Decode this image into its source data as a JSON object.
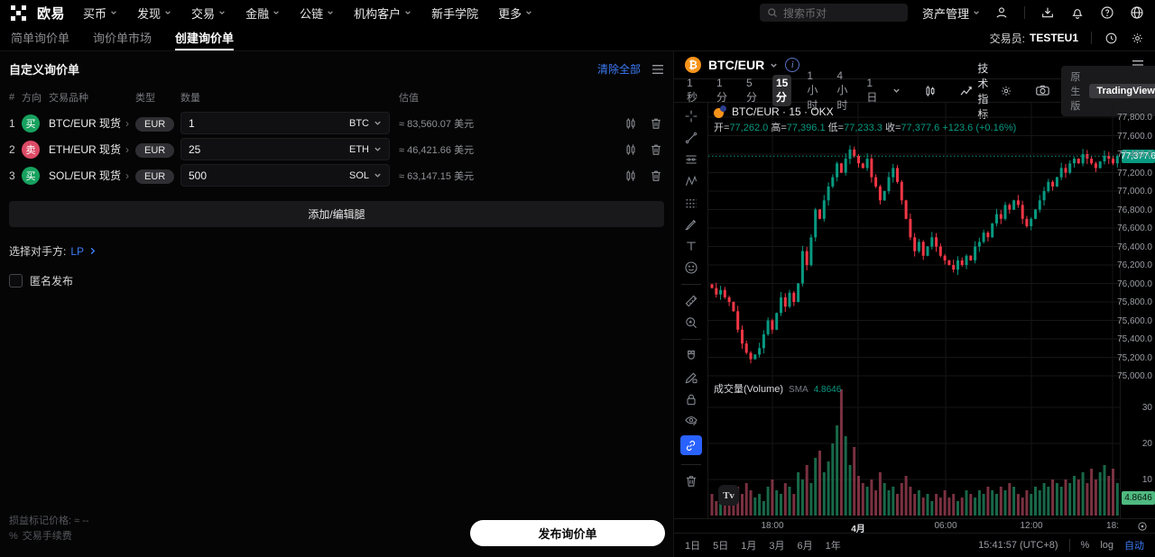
{
  "top_nav": {
    "logo_text": "欧易",
    "items": [
      {
        "label": "买币",
        "chevron": true
      },
      {
        "label": "发现",
        "chevron": true
      },
      {
        "label": "交易",
        "chevron": true
      },
      {
        "label": "金融",
        "chevron": true
      },
      {
        "label": "公链",
        "chevron": true
      },
      {
        "label": "机构客户",
        "chevron": true
      },
      {
        "label": "新手学院",
        "chevron": false
      },
      {
        "label": "更多",
        "chevron": true
      }
    ],
    "search_placeholder": "搜索币对",
    "assets_label": "资产管理"
  },
  "sub_nav": {
    "tabs": [
      {
        "label": "简单询价单"
      },
      {
        "label": "询价单市场"
      },
      {
        "label": "创建询价单"
      }
    ],
    "trader_label": "交易员:",
    "trader_value": "TESTEU1"
  },
  "rfq": {
    "title": "自定义询价单",
    "clear_all": "清除全部",
    "table": {
      "headers": {
        "index": "#",
        "side": "方向",
        "pair": "交易品种",
        "type": "类型",
        "amount": "数量",
        "value": "估值"
      },
      "rows": [
        {
          "index": "1",
          "side": "买",
          "pair": "BTC/EUR 现货",
          "type": "EUR",
          "amount": "1",
          "unit": "BTC",
          "value": "≈ 83,560.07 美元"
        },
        {
          "index": "2",
          "side": "卖",
          "pair": "ETH/EUR 现货",
          "type": "EUR",
          "amount": "25",
          "unit": "ETH",
          "value": "≈ 46,421.66 美元"
        },
        {
          "index": "3",
          "side": "买",
          "pair": "SOL/EUR 现货",
          "type": "EUR",
          "amount": "500",
          "unit": "SOL",
          "value": "≈ 63,147.15 美元"
        }
      ]
    },
    "add_leg": "添加/编辑腿",
    "counterparty_label": "选择对手方:",
    "counterparty_value": "LP",
    "anonymous_label": "匿名发布",
    "pnl_label": "损益标记价格:",
    "pnl_value": "≈ --",
    "fee_icon": "%",
    "fee_label": "交易手续费",
    "submit_label": "发布询价单"
  },
  "chart": {
    "pair": "BTC/EUR",
    "legend_title": "BTC/EUR · 15 · OKX",
    "ohlc": {
      "o_label": "开=",
      "o": "77,262.0",
      "h_label": "高=",
      "h": "77,396.1",
      "l_label": "低=",
      "l": "77,233.3",
      "c_label": "收=",
      "c": "77,377.6",
      "change": "+123.6 (+0.16%)"
    },
    "timeframes": [
      "1秒",
      "1分",
      "5分",
      "15分",
      "1小时",
      "4小时",
      "1日"
    ],
    "active_timeframe": "15分",
    "indicators_label": "技术指标",
    "toggle_left": "原生版",
    "toggle_right": "TradingView",
    "volume_title": "成交量(Volume)",
    "volume_sma_label": "SMA",
    "volume_sma_value": "4.8646",
    "price_badge": "77,377.6",
    "volume_badge": "4.8646",
    "watermark": "Tv",
    "bottom": {
      "ranges": [
        "1日",
        "5日",
        "1月",
        "3月",
        "6月",
        "1年"
      ],
      "clock": "15:41:57 (UTC+8)",
      "percent": "%",
      "log": "log",
      "auto": "自动"
    }
  },
  "chart_data": {
    "type": "candlestick+volume",
    "title": "BTC/EUR · 15 · OKX",
    "interval": "15m",
    "exchange": "OKX",
    "open": 77262.0,
    "high": 77396.1,
    "low": 77233.3,
    "close": 77377.6,
    "change": "+123.6 (+0.16%)",
    "current": 77377.6,
    "ylim": [
      75000,
      77800
    ],
    "y_ticks": [
      77800,
      77600,
      77400,
      77200,
      77000,
      76800,
      76600,
      76400,
      76200,
      76000,
      75800,
      75600,
      75400,
      75200,
      75000
    ],
    "volume_ticks": [
      30,
      20,
      10
    ],
    "volume_sma": 4.8646,
    "x_labels": [
      "18:00",
      "4月",
      "06:00",
      "12:00",
      "18:"
    ],
    "x_label_bold": "4月",
    "closes": [
      75950,
      75880,
      75930,
      75850,
      75800,
      75700,
      75500,
      75350,
      75250,
      75180,
      75230,
      75300,
      75450,
      75600,
      75500,
      75680,
      75850,
      75750,
      75900,
      75800,
      76000,
      76350,
      76200,
      76500,
      76800,
      76700,
      76900,
      77050,
      77150,
      77300,
      77200,
      77350,
      77450,
      77380,
      77300,
      77250,
      77350,
      77150,
      77050,
      76900,
      77000,
      77150,
      77250,
      77100,
      76900,
      76700,
      76500,
      76350,
      76450,
      76300,
      76400,
      76500,
      76400,
      76300,
      76250,
      76200,
      76150,
      76250,
      76200,
      76300,
      76250,
      76400,
      76450,
      76550,
      76500,
      76650,
      76750,
      76700,
      76850,
      76800,
      76900,
      76850,
      76700,
      76620,
      76700,
      76800,
      76900,
      77000,
      77100,
      77050,
      77150,
      77250,
      77200,
      77300,
      77350,
      77300,
      77400,
      77350,
      77300,
      77250,
      77320,
      77380,
      77350,
      77300,
      77377.6
    ],
    "volumes": [
      6,
      4,
      5,
      3,
      7,
      5,
      8,
      6,
      9,
      7,
      5,
      6,
      4,
      8,
      10,
      7,
      6,
      9,
      8,
      6,
      12,
      10,
      14,
      9,
      16,
      18,
      12,
      15,
      20,
      25,
      35,
      22,
      14,
      19,
      11,
      9,
      8,
      10,
      7,
      12,
      9,
      7,
      8,
      6,
      9,
      11,
      8,
      6,
      7,
      5,
      6,
      4,
      6,
      5,
      7,
      5,
      6,
      4,
      5,
      7,
      6,
      5,
      7,
      6,
      8,
      7,
      6,
      8,
      7,
      9,
      8,
      6,
      5,
      7,
      6,
      8,
      7,
      9,
      8,
      10,
      9,
      8,
      10,
      9,
      11,
      10,
      12,
      9,
      13,
      10,
      12,
      14,
      11,
      13,
      9
    ]
  },
  "colors": {
    "up": "#089981",
    "down": "#f23645",
    "volume_up": "#1c7a55",
    "volume_down": "#8f3a4b",
    "link": "#3c7bf6",
    "grid": "#161616",
    "buy_badge": "#16a15e",
    "sell_badge": "#dd4b66",
    "bitcoin_orange": "#f7931a"
  }
}
